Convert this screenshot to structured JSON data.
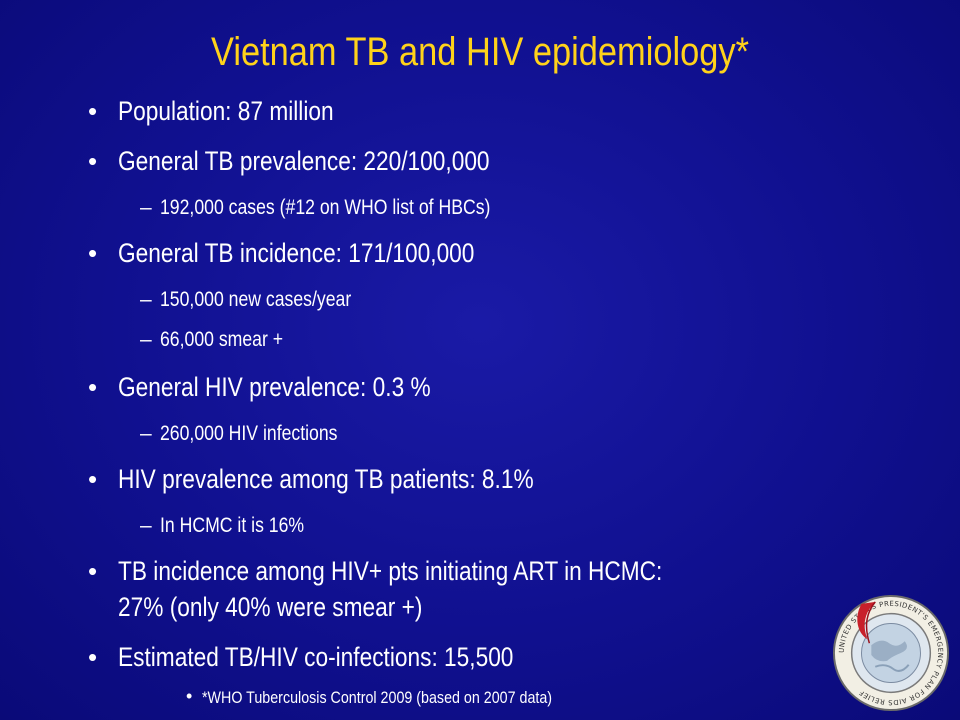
{
  "title": "Vietnam TB and HIV epidemiology*",
  "items": {
    "population": "Population: 87 million",
    "tb_prevalence": "General TB prevalence: 220/100,000",
    "tb_prevalence_sub1": "192,000 cases (#12 on WHO list of HBCs)",
    "tb_incidence": "General TB incidence: 171/100,000",
    "tb_incidence_sub1": "150,000 new cases/year",
    "tb_incidence_sub2": "66,000 smear +",
    "hiv_prevalence": "General HIV prevalence: 0.3 %",
    "hiv_prevalence_sub1": "260,000 HIV infections",
    "hiv_among_tb": "HIV prevalence among TB patients: 8.1%",
    "hiv_among_tb_sub1": "In HCMC it is 16%",
    "tb_incidence_art_line1": "TB incidence among HIV+ pts initiating ART in HCMC:",
    "tb_incidence_art_line2": "27% (only 40% were smear +)",
    "coinfections": "Estimated TB/HIV co-infections: 15,500",
    "footnote": "*WHO Tuberculosis Control 2009 (based on 2007 data)"
  },
  "symbols": {
    "bullet": "•",
    "dash": "–"
  },
  "seal": {
    "icon": "pepfar-seal-icon",
    "text": "UNITED STATES PRESIDENT'S EMERGENCY PLAN FOR AIDS RELIEF"
  },
  "colors": {
    "background": "#10108f",
    "title": "#ffd21a",
    "text": "#ffffff",
    "ribbon": "#c8202a"
  }
}
